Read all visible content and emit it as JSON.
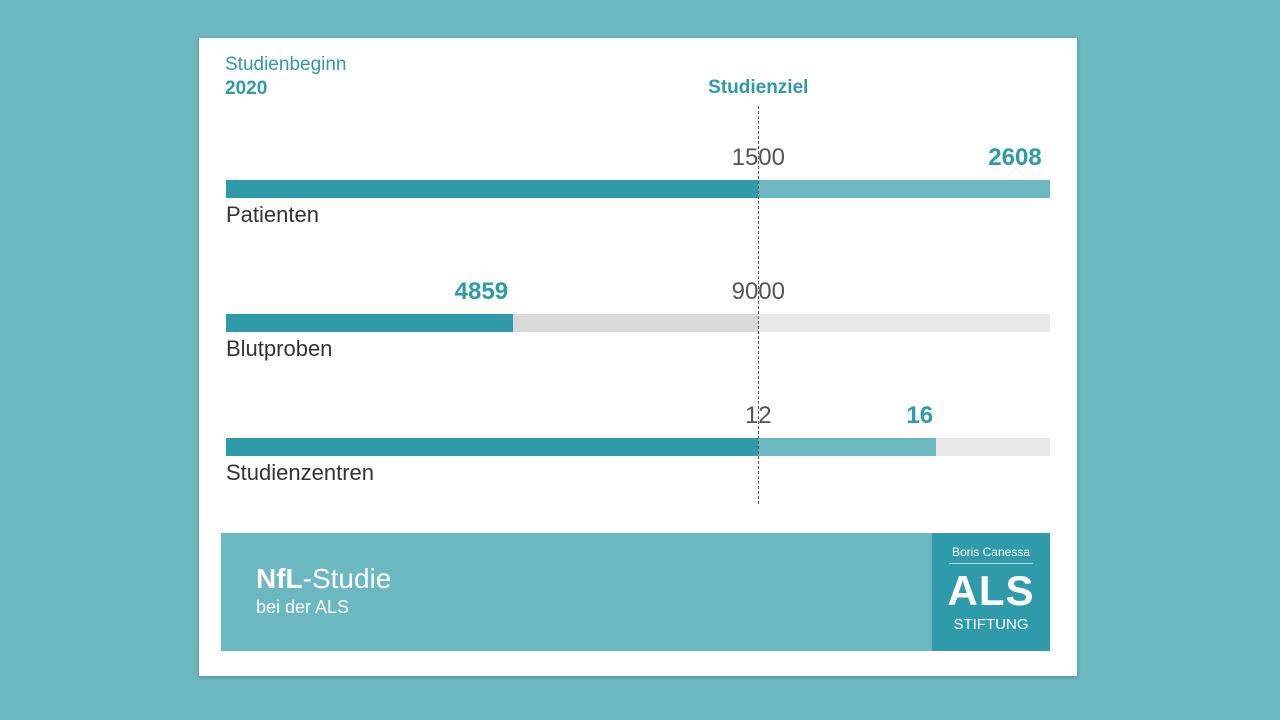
{
  "chart_data": {
    "type": "bar",
    "orientation": "horizontal",
    "start_label": "Studienbeginn",
    "start_year": "2020",
    "goal_label": "Studienziel",
    "rows": [
      {
        "label": "Patienten",
        "target": 1500,
        "actual": 2608,
        "target_text": "1500",
        "actual_text": "2608"
      },
      {
        "label": "Blutproben",
        "target": 9000,
        "actual": 4859,
        "target_text": "9000",
        "actual_text": "4859"
      },
      {
        "label": "Studienzentren",
        "target": 12,
        "actual": 16,
        "target_text": "12",
        "actual_text": "16"
      }
    ],
    "goal_fraction": 0.646,
    "track_end_fraction": 1.0
  },
  "footer": {
    "title_bold": "NfL",
    "title_rest": "-Studie",
    "subtitle": "bei der ALS"
  },
  "logo": {
    "top": "Boris Canessa",
    "main": "ALS",
    "bottom": "STIFTUNG"
  },
  "colors": {
    "background": "#6bb8c0",
    "accent": "#2e9aaa",
    "light_accent": "#6bb8c0",
    "track": "#e8e8e8",
    "under_target": "#d9d9d9",
    "target_text": "#555555"
  }
}
